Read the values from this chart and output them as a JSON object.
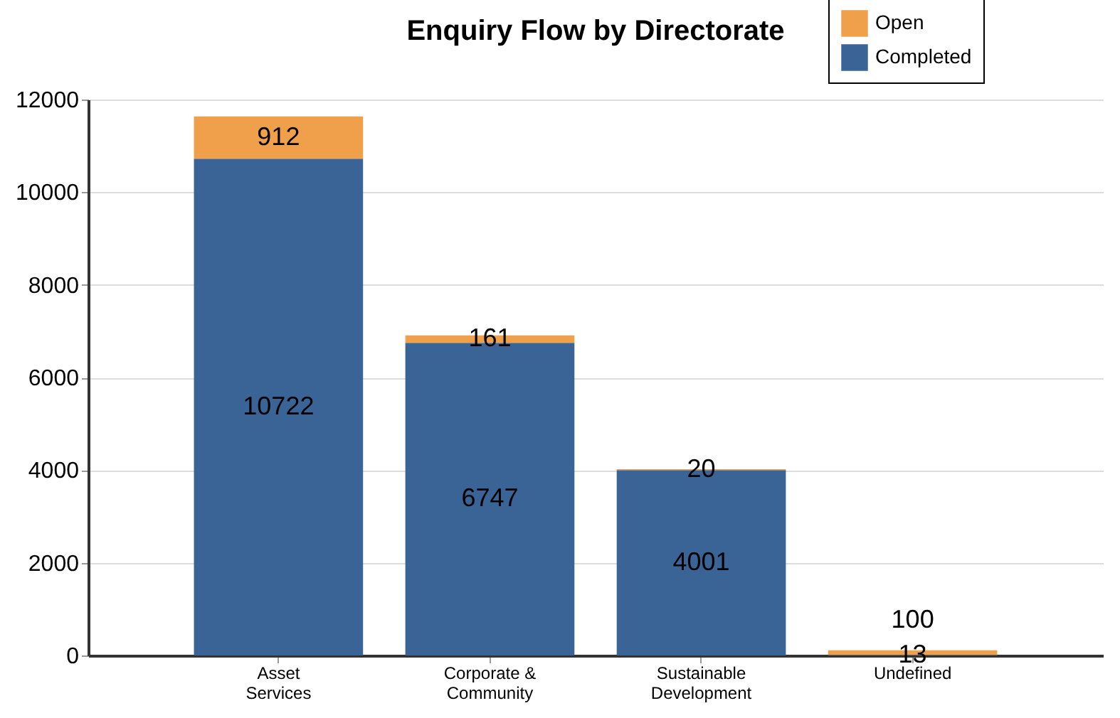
{
  "chart_data": {
    "type": "bar",
    "title": "Enquiry Flow by Directorate",
    "categories": [
      "Asset Services",
      "Corporate & Community",
      "Sustainable Development",
      "Undefined"
    ],
    "series": [
      {
        "name": "Completed",
        "color": "#3a6496",
        "values": [
          10722,
          6747,
          4001,
          13
        ]
      },
      {
        "name": "Open",
        "color": "#f0a04b",
        "values": [
          912,
          161,
          20,
          100
        ]
      }
    ],
    "stacked": true,
    "data_labels": true,
    "ylim": [
      0,
      12000
    ],
    "yticks": [
      0,
      2000,
      4000,
      6000,
      8000,
      10000,
      12000
    ],
    "grid": "y",
    "legend": "top right"
  }
}
